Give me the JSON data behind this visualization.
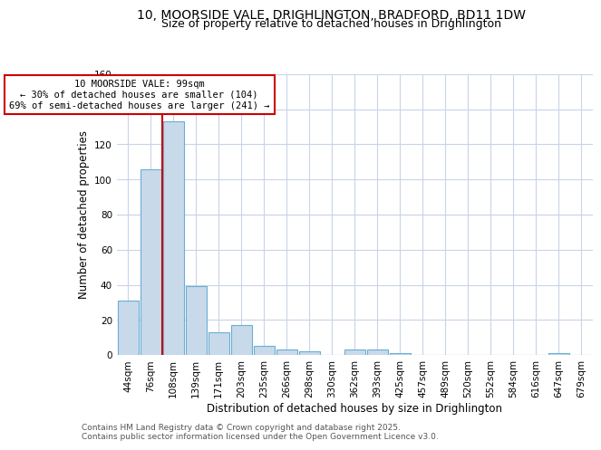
{
  "title1": "10, MOORSIDE VALE, DRIGHLINGTON, BRADFORD, BD11 1DW",
  "title2": "Size of property relative to detached houses in Drighlington",
  "xlabel": "Distribution of detached houses by size in Drighlington",
  "ylabel": "Number of detached properties",
  "categories": [
    "44sqm",
    "76sqm",
    "108sqm",
    "139sqm",
    "171sqm",
    "203sqm",
    "235sqm",
    "266sqm",
    "298sqm",
    "330sqm",
    "362sqm",
    "393sqm",
    "425sqm",
    "457sqm",
    "489sqm",
    "520sqm",
    "552sqm",
    "584sqm",
    "616sqm",
    "647sqm",
    "679sqm"
  ],
  "values": [
    31,
    106,
    133,
    39,
    13,
    17,
    5,
    3,
    2,
    0,
    3,
    3,
    1,
    0,
    0,
    0,
    0,
    0,
    0,
    1,
    0
  ],
  "bar_color": "#c8daea",
  "bar_edge_color": "#6aadd5",
  "annotation_text": "10 MOORSIDE VALE: 99sqm\n← 30% of detached houses are smaller (104)\n69% of semi-detached houses are larger (241) →",
  "annotation_box_color": "#ffffff",
  "annotation_box_edge_color": "#cc0000",
  "vline_color": "#cc0000",
  "vline_x_index": 1.5,
  "ylim": [
    0,
    160
  ],
  "yticks": [
    0,
    20,
    40,
    60,
    80,
    100,
    120,
    140,
    160
  ],
  "grid_color": "#c8d4e8",
  "background_color": "#ffffff",
  "footer_text": "Contains HM Land Registry data © Crown copyright and database right 2025.\nContains public sector information licensed under the Open Government Licence v3.0.",
  "title_fontsize": 10,
  "subtitle_fontsize": 9,
  "tick_fontsize": 7.5,
  "ylabel_fontsize": 8.5,
  "xlabel_fontsize": 8.5,
  "footer_fontsize": 6.5
}
